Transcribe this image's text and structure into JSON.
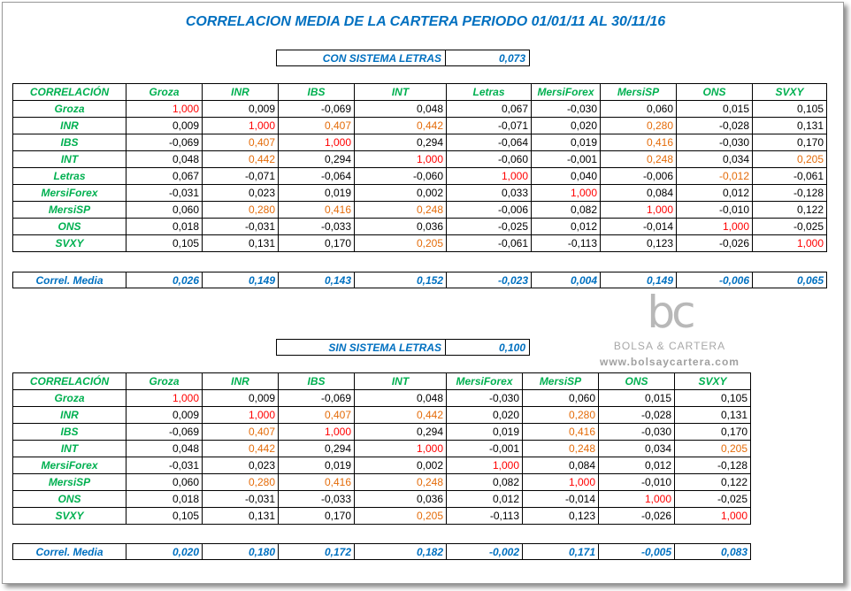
{
  "title": "CORRELACION MEDIA DE LA CARTERA PERIODO 01/01/11 AL 30/11/16",
  "section1": {
    "summary_label": "CON SISTEMA LETRAS",
    "summary_value": "0,073",
    "corner": "CORRELACIÓN",
    "headers": [
      "Groza",
      "INR",
      "IBS",
      "INT",
      "Letras",
      "MersiForex",
      "MersiSP",
      "ONS",
      "SVXY"
    ],
    "rows": [
      {
        "label": "Groza",
        "values": [
          "1,000",
          "0,009",
          "-0,069",
          "0,048",
          "0,067",
          "-0,030",
          "0,060",
          "0,015",
          "0,105"
        ]
      },
      {
        "label": "INR",
        "values": [
          "0,009",
          "1,000",
          "0,407",
          "0,442",
          "-0,071",
          "0,020",
          "0,280",
          "-0,028",
          "0,131"
        ]
      },
      {
        "label": "IBS",
        "values": [
          "-0,069",
          "0,407",
          "1,000",
          "0,294",
          "-0,064",
          "0,019",
          "0,416",
          "-0,030",
          "0,170"
        ]
      },
      {
        "label": "INT",
        "values": [
          "0,048",
          "0,442",
          "0,294",
          "1,000",
          "-0,060",
          "-0,001",
          "0,248",
          "0,034",
          "0,205"
        ]
      },
      {
        "label": "Letras",
        "values": [
          "0,067",
          "-0,071",
          "-0,064",
          "-0,060",
          "1,000",
          "0,040",
          "-0,006",
          "-0,012",
          "-0,061"
        ]
      },
      {
        "label": "MersiForex",
        "values": [
          "-0,031",
          "0,023",
          "0,019",
          "0,002",
          "0,033",
          "1,000",
          "0,084",
          "0,012",
          "-0,128"
        ]
      },
      {
        "label": "MersiSP",
        "values": [
          "0,060",
          "0,280",
          "0,416",
          "0,248",
          "-0,006",
          "0,082",
          "1,000",
          "-0,010",
          "0,122"
        ]
      },
      {
        "label": "ONS",
        "values": [
          "0,018",
          "-0,031",
          "-0,033",
          "0,036",
          "-0,025",
          "0,012",
          "-0,014",
          "1,000",
          "-0,025"
        ]
      },
      {
        "label": "SVXY",
        "values": [
          "0,105",
          "0,131",
          "0,170",
          "0,205",
          "-0,061",
          "-0,113",
          "0,123",
          "-0,026",
          "1,000"
        ]
      }
    ],
    "highlight": [
      [
        "red",
        "",
        "",
        "",
        "",
        "",
        "",
        "",
        ""
      ],
      [
        "",
        "red",
        "orange",
        "orange",
        "",
        "",
        "orange",
        "",
        ""
      ],
      [
        "",
        "orange",
        "red",
        "",
        "",
        "",
        "orange",
        "",
        ""
      ],
      [
        "",
        "orange",
        "",
        "red",
        "",
        "",
        "orange",
        "",
        "orange"
      ],
      [
        "",
        "",
        "",
        "",
        "red",
        "",
        "",
        "orange",
        ""
      ],
      [
        "",
        "",
        "",
        "",
        "",
        "red",
        "",
        "",
        ""
      ],
      [
        "",
        "orange",
        "orange",
        "orange",
        "",
        "",
        "red",
        "",
        ""
      ],
      [
        "",
        "",
        "",
        "",
        "",
        "",
        "",
        "red",
        ""
      ],
      [
        "",
        "",
        "",
        "orange",
        "",
        "",
        "",
        "",
        "red"
      ]
    ],
    "mean_label": "Correl. Media",
    "mean_values": [
      "0,026",
      "0,149",
      "0,143",
      "0,152",
      "-0,023",
      "0,004",
      "0,149",
      "-0,006",
      "0,065"
    ]
  },
  "section2": {
    "summary_label": "SIN SISTEMA LETRAS",
    "summary_value": "0,100",
    "corner": "CORRELACIÓN",
    "headers": [
      "Groza",
      "INR",
      "IBS",
      "INT",
      "MersiForex",
      "MersiSP",
      "ONS",
      "SVXY"
    ],
    "rows": [
      {
        "label": "Groza",
        "values": [
          "1,000",
          "0,009",
          "-0,069",
          "0,048",
          "-0,030",
          "0,060",
          "0,015",
          "0,105"
        ]
      },
      {
        "label": "INR",
        "values": [
          "0,009",
          "1,000",
          "0,407",
          "0,442",
          "0,020",
          "0,280",
          "-0,028",
          "0,131"
        ]
      },
      {
        "label": "IBS",
        "values": [
          "-0,069",
          "0,407",
          "1,000",
          "0,294",
          "0,019",
          "0,416",
          "-0,030",
          "0,170"
        ]
      },
      {
        "label": "INT",
        "values": [
          "0,048",
          "0,442",
          "0,294",
          "1,000",
          "-0,001",
          "0,248",
          "0,034",
          "0,205"
        ]
      },
      {
        "label": "MersiForex",
        "values": [
          "-0,031",
          "0,023",
          "0,019",
          "0,002",
          "1,000",
          "0,084",
          "0,012",
          "-0,128"
        ]
      },
      {
        "label": "MersiSP",
        "values": [
          "0,060",
          "0,280",
          "0,416",
          "0,248",
          "0,082",
          "1,000",
          "-0,010",
          "0,122"
        ]
      },
      {
        "label": "ONS",
        "values": [
          "0,018",
          "-0,031",
          "-0,033",
          "0,036",
          "0,012",
          "-0,014",
          "1,000",
          "-0,025"
        ]
      },
      {
        "label": "SVXY",
        "values": [
          "0,105",
          "0,131",
          "0,170",
          "0,205",
          "-0,113",
          "0,123",
          "-0,026",
          "1,000"
        ]
      }
    ],
    "highlight": [
      [
        "red",
        "",
        "",
        "",
        "",
        "",
        "",
        ""
      ],
      [
        "",
        "red",
        "orange",
        "orange",
        "",
        "orange",
        "",
        ""
      ],
      [
        "",
        "orange",
        "red",
        "",
        "",
        "orange",
        "",
        ""
      ],
      [
        "",
        "orange",
        "",
        "red",
        "",
        "orange",
        "",
        "orange"
      ],
      [
        "",
        "",
        "",
        "",
        "red",
        "",
        "",
        ""
      ],
      [
        "",
        "orange",
        "orange",
        "orange",
        "",
        "red",
        "",
        ""
      ],
      [
        "",
        "",
        "",
        "",
        "",
        "",
        "red",
        ""
      ],
      [
        "",
        "",
        "",
        "orange",
        "",
        "",
        "",
        "red"
      ]
    ],
    "mean_label": "Correl. Media",
    "mean_values": [
      "0,020",
      "0,180",
      "0,172",
      "0,182",
      "-0,002",
      "0,171",
      "-0,005",
      "0,083"
    ]
  },
  "logo": {
    "mark": "bc",
    "brand": "BOLSA & CARTERA",
    "url": "www.bolsaycartera.com"
  },
  "colors": {
    "title_blue": "#0070c0",
    "header_green": "#00b050",
    "diag_red": "#ff0000",
    "high_orange": "#e46c0a"
  }
}
